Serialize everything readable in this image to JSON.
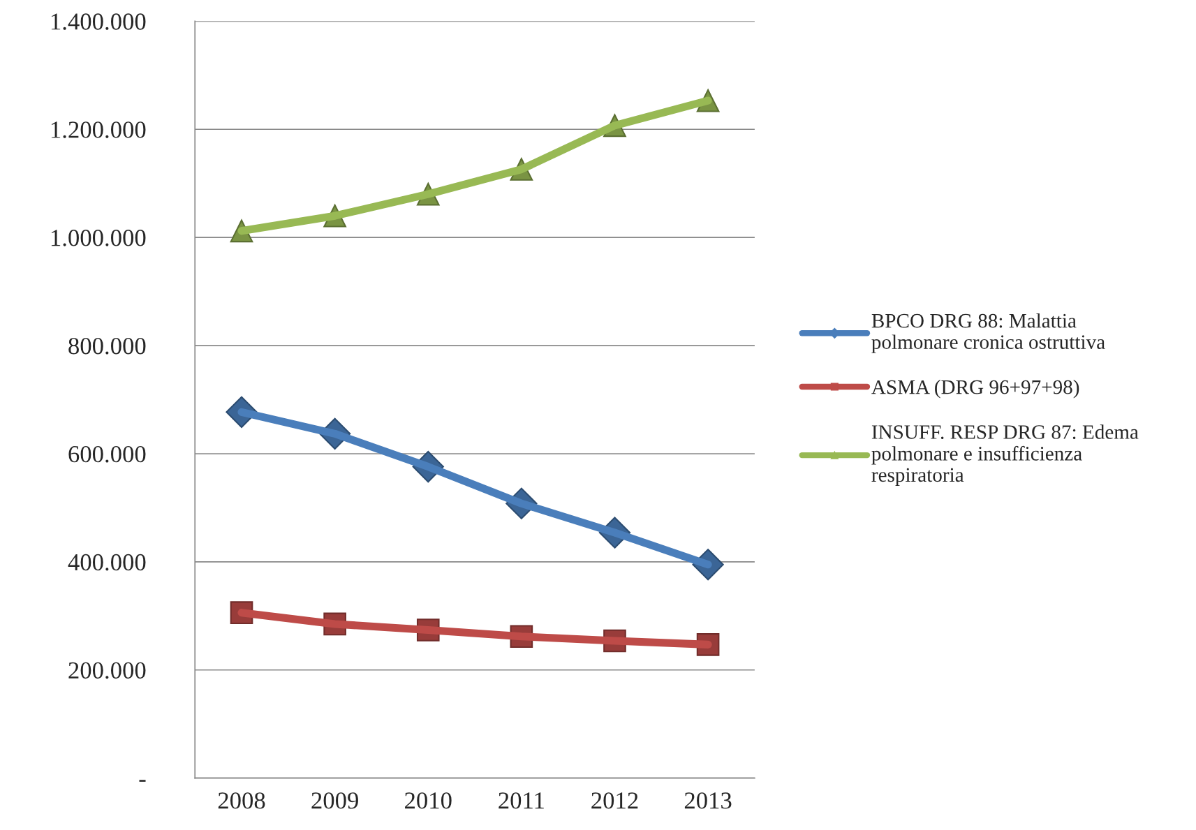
{
  "chart_data": {
    "type": "line",
    "categories": [
      "2008",
      "2009",
      "2010",
      "2011",
      "2012",
      "2013"
    ],
    "series": [
      {
        "name": "BPCO DRG 88: Malattia\npolmonare cronica ostruttiva",
        "color": "#4a7ebb",
        "marker": "diamond",
        "values": [
          677000,
          637000,
          576000,
          508000,
          454000,
          395000
        ]
      },
      {
        "name": "ASMA (DRG 96+97+98)",
        "color": "#be4b48",
        "marker": "square",
        "values": [
          306000,
          285000,
          274000,
          262000,
          254000,
          247000
        ]
      },
      {
        "name": "INSUFF. RESP DRG 87: Edema\npolmonare e insufficienza\nrespiratoria",
        "color": "#98b954",
        "marker": "triangle",
        "values": [
          1012000,
          1040000,
          1080000,
          1126000,
          1207000,
          1253000
        ]
      }
    ],
    "ylim": [
      0,
      1400000
    ],
    "yticks": [
      {
        "value": 0,
        "label": "-"
      },
      {
        "value": 200000,
        "label": "200.000"
      },
      {
        "value": 400000,
        "label": "400.000"
      },
      {
        "value": 600000,
        "label": "600.000"
      },
      {
        "value": 800000,
        "label": "800.000"
      },
      {
        "value": 1000000,
        "label": "1.000.000"
      },
      {
        "value": 1200000,
        "label": "1.200.000"
      },
      {
        "value": 1400000,
        "label": "1.400.000"
      }
    ],
    "grid": "y",
    "legend": "right"
  }
}
